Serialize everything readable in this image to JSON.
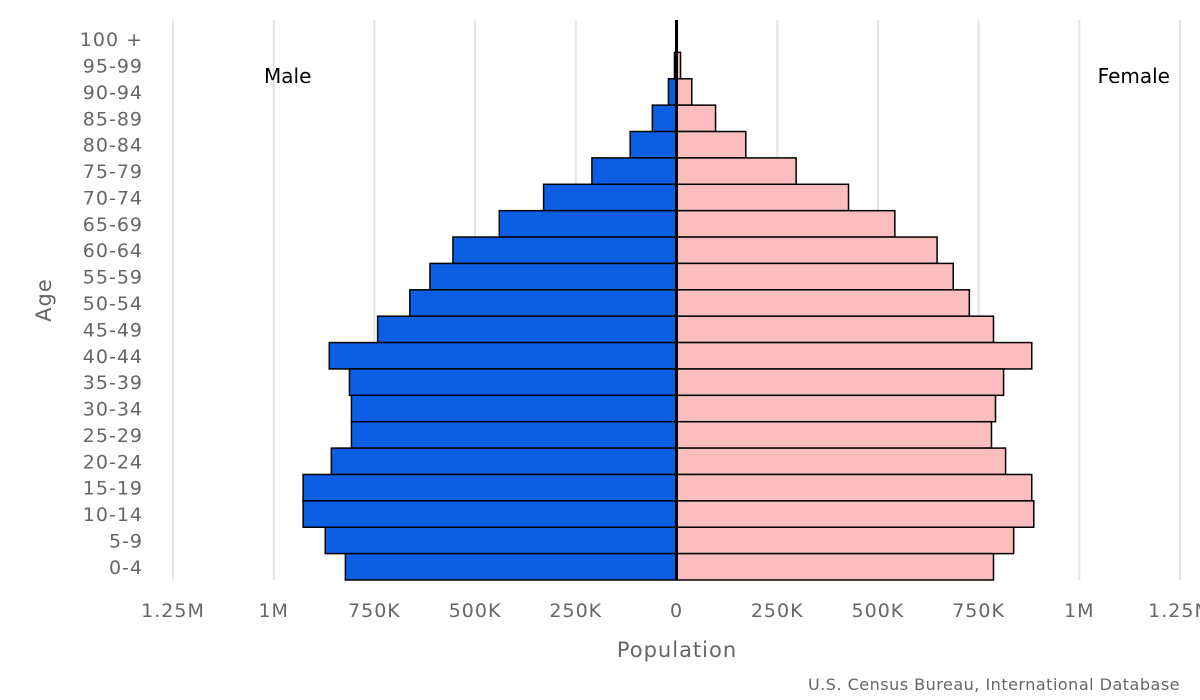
{
  "chart_data": {
    "type": "bar",
    "orientation": "horizontal-pyramid",
    "title": "",
    "xlabel": "Population",
    "ylabel": "Age",
    "categories": [
      "100 +",
      "95-99",
      "90-94",
      "85-89",
      "80-84",
      "75-79",
      "70-74",
      "65-69",
      "60-64",
      "55-59",
      "50-54",
      "45-49",
      "40-44",
      "35-39",
      "30-34",
      "25-29",
      "20-24",
      "15-19",
      "10-14",
      "5-9",
      "0-4"
    ],
    "series": [
      {
        "name": "Male",
        "color": "#0c5fe3",
        "values": [
          1000,
          5000,
          20000,
          60000,
          115000,
          210000,
          330000,
          440000,
          555000,
          612000,
          662000,
          742000,
          862000,
          812000,
          807000,
          807000,
          857000,
          927000,
          927000,
          872000,
          822000
        ]
      },
      {
        "name": "Female",
        "color": "#fbbdbd",
        "values": [
          2000,
          10000,
          38000,
          97000,
          172000,
          297000,
          427000,
          542000,
          647000,
          687000,
          727000,
          787000,
          882000,
          812000,
          792000,
          782000,
          817000,
          882000,
          887000,
          837000,
          787000
        ]
      }
    ],
    "xlim": [
      -1250000,
      1250000
    ],
    "ticks": [
      {
        "value": -1250000,
        "label": "1.25M"
      },
      {
        "value": -1000000,
        "label": "1M"
      },
      {
        "value": -750000,
        "label": "750K"
      },
      {
        "value": -500000,
        "label": "500K"
      },
      {
        "value": -250000,
        "label": "250K"
      },
      {
        "value": 0,
        "label": "0"
      },
      {
        "value": 250000,
        "label": "250K"
      },
      {
        "value": 500000,
        "label": "500K"
      },
      {
        "value": 750000,
        "label": "750K"
      },
      {
        "value": 1000000,
        "label": "1M"
      },
      {
        "value": 1250000,
        "label": "1.25M"
      }
    ],
    "grid": true,
    "side_labels": {
      "left": "Male",
      "right": "Female"
    },
    "source": "U.S. Census Bureau, International Database"
  }
}
